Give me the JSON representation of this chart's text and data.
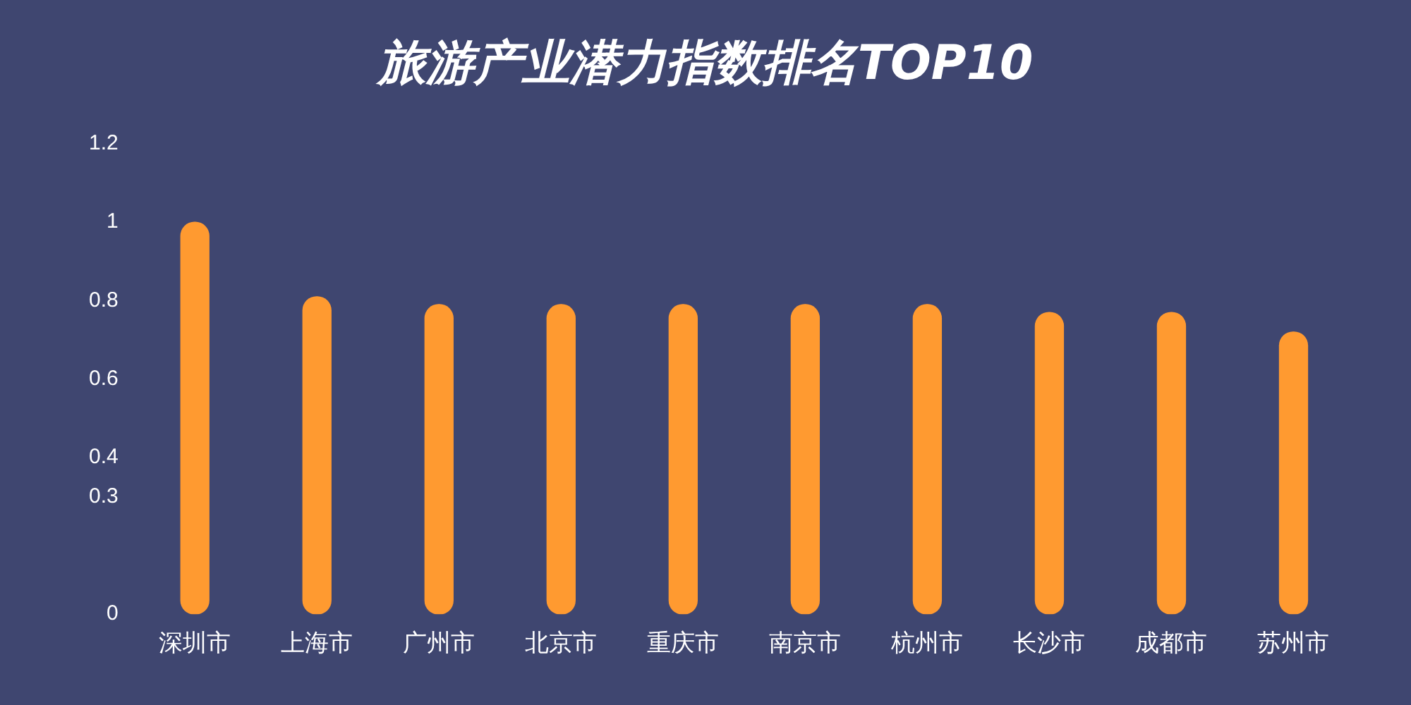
{
  "chart_data": {
    "type": "bar",
    "title": "旅游产业潜力指数排名TOP10",
    "categories": [
      "深圳市",
      "上海市",
      "广州市",
      "北京市",
      "重庆市",
      "南京市",
      "杭州市",
      "长沙市",
      "成都市",
      "苏州市"
    ],
    "values": [
      1.0,
      0.81,
      0.79,
      0.79,
      0.79,
      0.79,
      0.79,
      0.77,
      0.77,
      0.72
    ],
    "color": "#ff9a30",
    "ylim": [
      0,
      1.2
    ],
    "yticks": [
      0,
      0.3,
      0.4,
      0.6,
      0.8,
      1,
      1.2
    ],
    "grid": false,
    "legend": false
  }
}
